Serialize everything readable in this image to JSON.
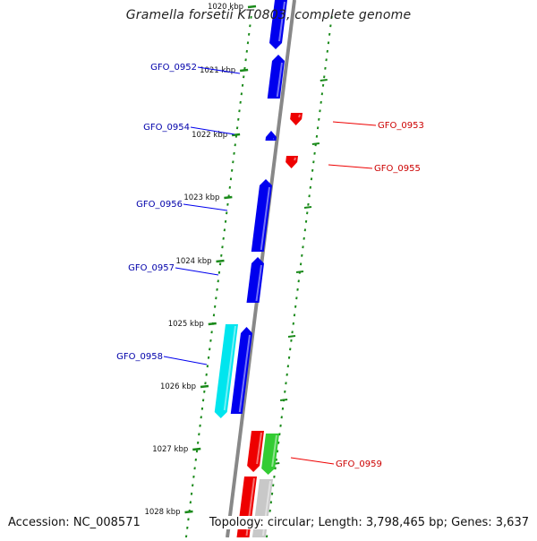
{
  "title": "Gramella forsetii KT0803, complete genome",
  "accession": "Accession: NC_008571",
  "topology": "Topology: circular; Length: 3,798,465 bp; Genes: 3,637",
  "colors": {
    "backbone": "#888888",
    "minus_strand": "#0000ee",
    "plus_strand": "#ee0000",
    "label_minus": "#0000aa",
    "label_plus": "#cc0000",
    "tick": "#1a8a1a",
    "cyan": "#00e5ee",
    "green": "#33cc33",
    "grey": "#c8c8c8"
  },
  "scale_labels": [
    "1020 kbp",
    "1021 kbp",
    "1022 kbp",
    "1023 kbp",
    "1024 kbp",
    "1025 kbp",
    "1026 kbp",
    "1027 kbp",
    "1028 kbp"
  ],
  "gene_labels_minus": [
    "GFO_0952",
    "GFO_0954",
    "GFO_0956",
    "GFO_0957",
    "GFO_0958"
  ],
  "gene_labels_plus": [
    "GFO_0953",
    "GFO_0955",
    "GFO_0959"
  ]
}
